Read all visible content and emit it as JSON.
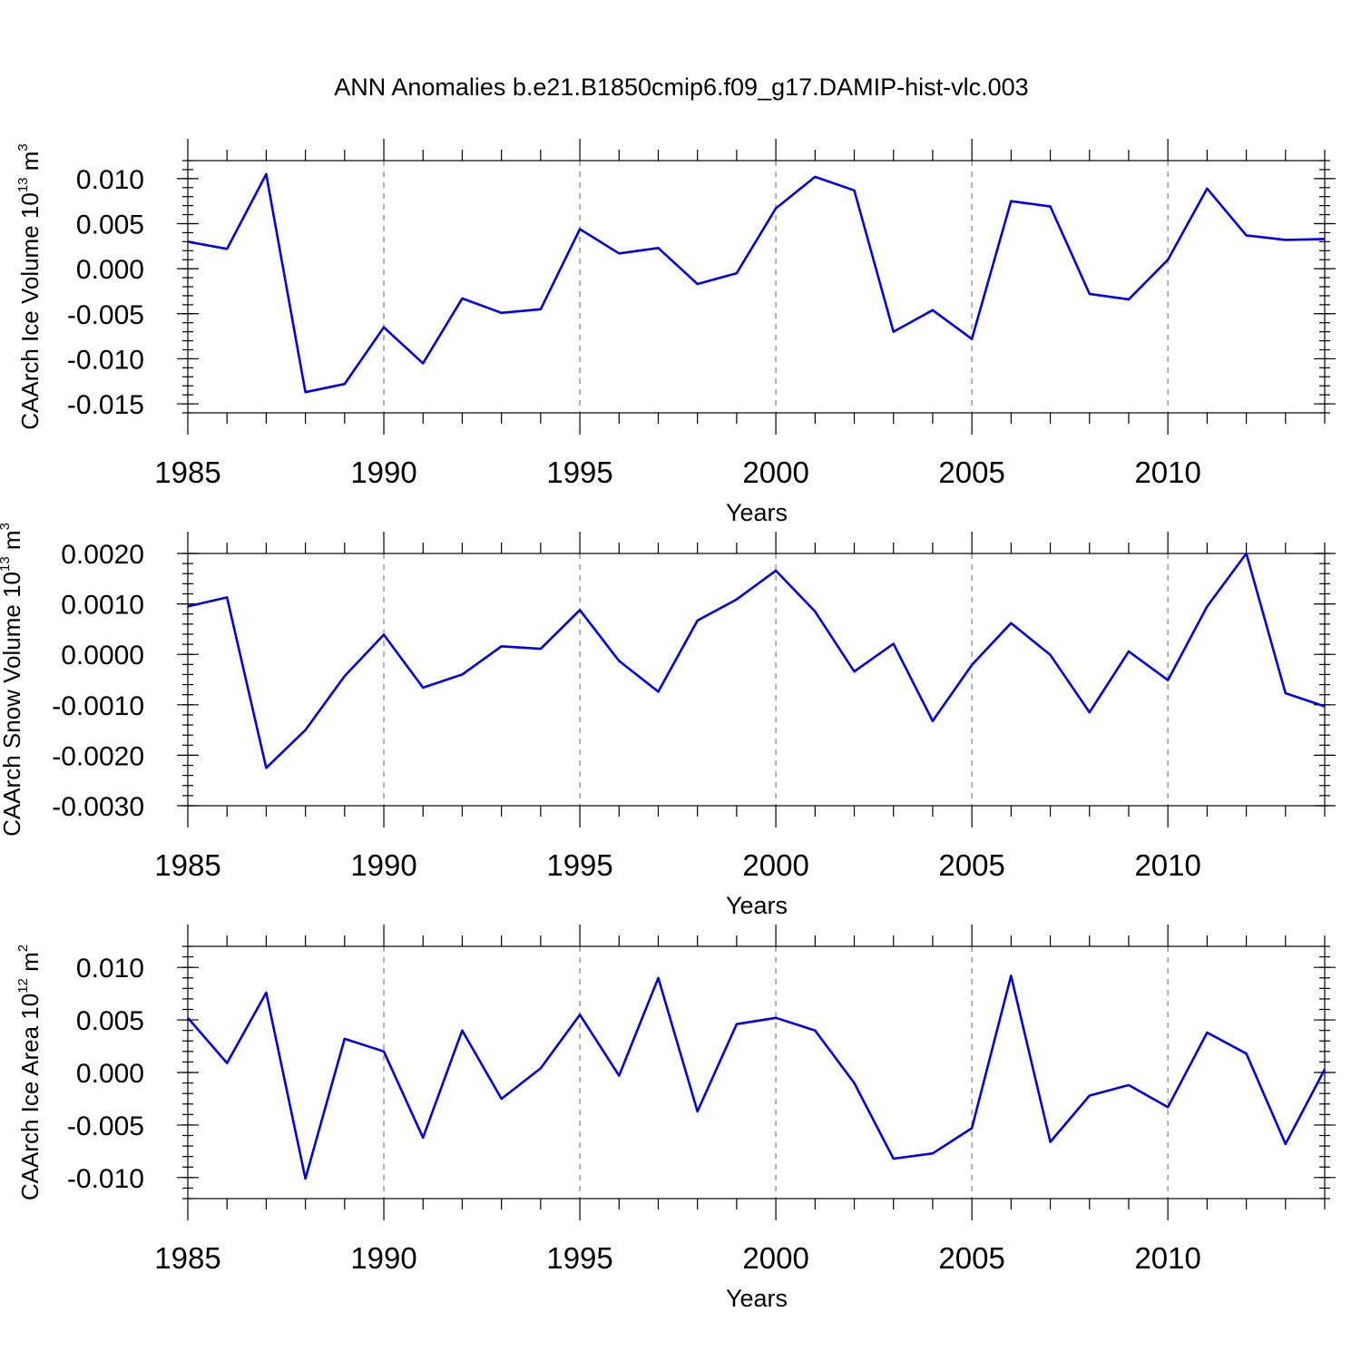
{
  "figure": {
    "title": "ANN Anomalies b.e21.B1850cmip6.f09_g17.DAMIP-hist-vlc.003"
  },
  "chart_data": [
    {
      "type": "line",
      "xlabel": "Years",
      "ylabel": "CAArch Ice Volume 10",
      "ylabel_exp": "13",
      "ylabel_unit": "m",
      "ylabel_unit_exp": "3",
      "xlim": [
        1985,
        2014
      ],
      "ylim": [
        -0.016,
        0.012
      ],
      "x_ticks": [
        1985,
        1990,
        1995,
        2000,
        2005,
        2010
      ],
      "x_tick_labels": [
        "1985",
        "1990",
        "1995",
        "2000",
        "2005",
        "2010"
      ],
      "y_ticks": [
        0.01,
        0.005,
        0.0,
        -0.005,
        -0.01,
        -0.015
      ],
      "y_tick_labels": [
        "0.010",
        "0.005",
        "0.000",
        "-0.005",
        "-0.010",
        "-0.015"
      ],
      "y_minor_step": 0.001,
      "grid": "vertical-dashed-at-major-x",
      "color": "#0000ee",
      "x": [
        1985,
        1986,
        1987,
        1988,
        1989,
        1990,
        1991,
        1992,
        1993,
        1994,
        1995,
        1996,
        1997,
        1998,
        1999,
        2000,
        2001,
        2002,
        2003,
        2004,
        2005,
        2006,
        2007,
        2008,
        2009,
        2010,
        2011,
        2012,
        2013,
        2014
      ],
      "values": [
        0.003,
        0.0022,
        0.0105,
        -0.0137,
        -0.0128,
        -0.0065,
        -0.0105,
        -0.0033,
        -0.0049,
        -0.0045,
        0.0044,
        0.0017,
        0.0023,
        -0.0017,
        -0.0005,
        0.0067,
        0.0102,
        0.0087,
        -0.007,
        -0.0046,
        -0.0078,
        0.0075,
        0.0069,
        -0.0028,
        -0.0034,
        0.001,
        0.0089,
        0.0037,
        0.0032,
        0.0033
      ]
    },
    {
      "type": "line",
      "xlabel": "Years",
      "ylabel": "CAArch Snow Volume 10",
      "ylabel_exp": "13",
      "ylabel_unit": "m",
      "ylabel_unit_exp": "3",
      "xlim": [
        1985,
        2014
      ],
      "ylim": [
        -0.003,
        0.002
      ],
      "x_ticks": [
        1985,
        1990,
        1995,
        2000,
        2005,
        2010
      ],
      "x_tick_labels": [
        "1985",
        "1990",
        "1995",
        "2000",
        "2005",
        "2010"
      ],
      "y_ticks": [
        0.002,
        0.001,
        0.0,
        -0.001,
        -0.002,
        -0.003
      ],
      "y_tick_labels": [
        "0.0020",
        "0.0010",
        "0.0000",
        "-0.0010",
        "-0.0020",
        "-0.0030"
      ],
      "y_minor_step": 0.0002,
      "grid": "vertical-dashed-at-major-x",
      "color": "#0000ee",
      "x": [
        1985,
        1986,
        1987,
        1988,
        1989,
        1990,
        1991,
        1992,
        1993,
        1994,
        1995,
        1996,
        1997,
        1998,
        1999,
        2000,
        2001,
        2002,
        2003,
        2004,
        2005,
        2006,
        2007,
        2008,
        2009,
        2010,
        2011,
        2012,
        2013,
        2014
      ],
      "values": [
        0.00095,
        0.00113,
        -0.00225,
        -0.0015,
        -0.00043,
        0.00039,
        -0.00066,
        -0.0004,
        0.00016,
        0.00011,
        0.00088,
        -0.00013,
        -0.00074,
        0.00067,
        0.00109,
        0.00166,
        0.00085,
        -0.00034,
        0.00021,
        -0.00132,
        -0.00021,
        0.00062,
        -1e-05,
        -0.00115,
        6e-05,
        -0.00051,
        0.00095,
        0.002,
        -0.00077,
        -0.00103
      ]
    },
    {
      "type": "line",
      "xlabel": "Years",
      "ylabel": "CAArch Ice Area 10",
      "ylabel_exp": "12",
      "ylabel_unit": "m",
      "ylabel_unit_exp": "2",
      "xlim": [
        1985,
        2014
      ],
      "ylim": [
        -0.012,
        0.012
      ],
      "x_ticks": [
        1985,
        1990,
        1995,
        2000,
        2005,
        2010
      ],
      "x_tick_labels": [
        "1985",
        "1990",
        "1995",
        "2000",
        "2005",
        "2010"
      ],
      "y_ticks": [
        0.01,
        0.005,
        0.0,
        -0.005,
        -0.01
      ],
      "y_tick_labels": [
        "0.010",
        "0.005",
        "0.000",
        "-0.005",
        "-0.010"
      ],
      "y_minor_step": 0.001,
      "grid": "vertical-dashed-at-major-x",
      "color": "#0000ee",
      "x": [
        1985,
        1986,
        1987,
        1988,
        1989,
        1990,
        1991,
        1992,
        1993,
        1994,
        1995,
        1996,
        1997,
        1998,
        1999,
        2000,
        2001,
        2002,
        2003,
        2004,
        2005,
        2006,
        2007,
        2008,
        2009,
        2010,
        2011,
        2012,
        2013,
        2014
      ],
      "values": [
        0.0052,
        0.0009,
        0.0076,
        -0.0101,
        0.0032,
        0.002,
        -0.0062,
        0.004,
        -0.0025,
        0.0004,
        0.0055,
        -0.0003,
        0.009,
        -0.0037,
        0.0046,
        0.0052,
        0.004,
        -0.001,
        -0.0082,
        -0.0077,
        -0.0053,
        0.0092,
        -0.0066,
        -0.0022,
        -0.0012,
        -0.0033,
        0.0038,
        0.0018,
        -0.0068,
        0.0003
      ]
    }
  ]
}
